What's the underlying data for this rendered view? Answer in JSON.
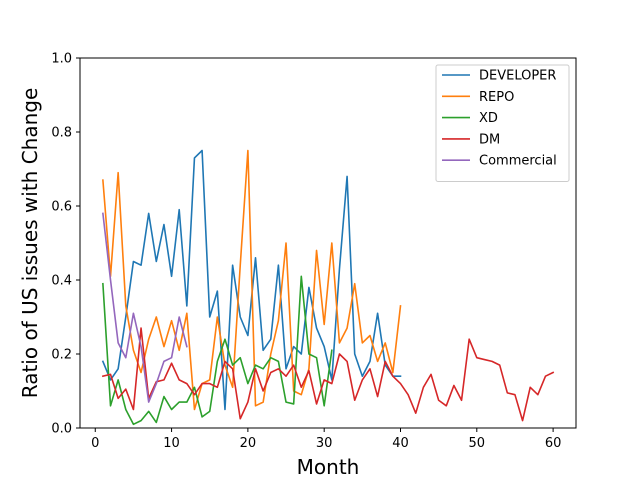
{
  "chart_data": {
    "type": "line",
    "title": "",
    "xlabel": "Month",
    "ylabel": "Ratio of US issues with Change",
    "xlim": [
      -2.0,
      63.0
    ],
    "ylim": [
      0.0,
      1.0
    ],
    "xticks": [
      0,
      10,
      20,
      30,
      40,
      50,
      60
    ],
    "yticks": [
      0.0,
      0.2,
      0.4,
      0.6,
      0.8,
      1.0
    ],
    "grid": false,
    "legend_position": "top-right",
    "series": [
      {
        "name": "DEVELOPER",
        "color": "#1f77b4",
        "x": [
          1,
          2,
          3,
          4,
          5,
          6,
          7,
          8,
          9,
          10,
          11,
          12,
          13,
          14,
          15,
          16,
          17,
          18,
          19,
          20,
          21,
          22,
          23,
          24,
          25,
          26,
          27,
          28,
          29,
          30,
          31,
          32,
          33,
          34,
          35,
          36,
          37,
          38,
          39,
          40
        ],
        "y": [
          0.18,
          0.13,
          0.16,
          0.3,
          0.45,
          0.44,
          0.58,
          0.45,
          0.55,
          0.41,
          0.59,
          0.33,
          0.73,
          0.75,
          0.3,
          0.37,
          0.05,
          0.44,
          0.3,
          0.25,
          0.46,
          0.21,
          0.24,
          0.44,
          0.16,
          0.22,
          0.2,
          0.38,
          0.27,
          0.22,
          0.13,
          0.43,
          0.68,
          0.2,
          0.14,
          0.18,
          0.31,
          0.17,
          0.14,
          0.14
        ]
      },
      {
        "name": "REPO",
        "color": "#ff7f0e",
        "x": [
          1,
          2,
          3,
          4,
          5,
          6,
          7,
          8,
          9,
          10,
          11,
          12,
          13,
          14,
          15,
          16,
          17,
          18,
          19,
          20,
          21,
          22,
          23,
          24,
          25,
          26,
          27,
          28,
          29,
          30,
          31,
          32,
          33,
          34,
          35,
          36,
          37,
          38,
          39,
          40
        ],
        "y": [
          0.67,
          0.41,
          0.69,
          0.33,
          0.21,
          0.15,
          0.24,
          0.3,
          0.22,
          0.29,
          0.21,
          0.31,
          0.05,
          0.12,
          0.13,
          0.3,
          0.17,
          0.11,
          0.44,
          0.75,
          0.06,
          0.07,
          0.2,
          0.29,
          0.5,
          0.1,
          0.09,
          0.16,
          0.48,
          0.28,
          0.5,
          0.23,
          0.27,
          0.39,
          0.23,
          0.25,
          0.18,
          0.23,
          0.15,
          0.33
        ]
      },
      {
        "name": "XD",
        "color": "#2ca02c",
        "x": [
          1,
          2,
          3,
          4,
          5,
          6,
          7,
          8,
          9,
          10,
          11,
          12,
          13,
          14,
          15,
          16,
          17,
          18,
          19,
          20,
          21,
          22,
          23,
          24,
          25,
          26,
          27,
          28,
          29,
          30,
          31
        ],
        "y": [
          0.39,
          0.06,
          0.13,
          0.05,
          0.01,
          0.02,
          0.045,
          0.015,
          0.085,
          0.05,
          0.07,
          0.07,
          0.11,
          0.03,
          0.045,
          0.18,
          0.24,
          0.17,
          0.19,
          0.12,
          0.17,
          0.16,
          0.19,
          0.18,
          0.07,
          0.065,
          0.41,
          0.2,
          0.19,
          0.06,
          0.21
        ]
      },
      {
        "name": "DM",
        "color": "#d62728",
        "x": [
          1,
          2,
          3,
          4,
          5,
          6,
          7,
          8,
          9,
          10,
          11,
          12,
          13,
          14,
          15,
          16,
          17,
          18,
          19,
          20,
          21,
          22,
          23,
          24,
          25,
          26,
          27,
          28,
          29,
          30,
          31,
          32,
          33,
          34,
          35,
          36,
          37,
          38,
          39,
          40,
          41,
          42,
          43,
          44,
          45,
          46,
          47,
          48,
          49,
          50,
          51,
          52,
          53,
          54,
          55,
          56,
          57,
          58,
          59,
          60
        ],
        "y": [
          0.14,
          0.145,
          0.08,
          0.105,
          0.05,
          0.27,
          0.08,
          0.125,
          0.13,
          0.175,
          0.13,
          0.12,
          0.09,
          0.12,
          0.12,
          0.11,
          0.18,
          0.16,
          0.025,
          0.07,
          0.16,
          0.1,
          0.15,
          0.16,
          0.14,
          0.17,
          0.11,
          0.155,
          0.065,
          0.13,
          0.12,
          0.2,
          0.18,
          0.075,
          0.13,
          0.16,
          0.085,
          0.18,
          0.14,
          0.12,
          0.09,
          0.04,
          0.11,
          0.145,
          0.075,
          0.06,
          0.115,
          0.075,
          0.24,
          0.19,
          0.185,
          0.18,
          0.17,
          0.095,
          0.09,
          0.02,
          0.11,
          0.09,
          0.14,
          0.15
        ]
      },
      {
        "name": "Commercial",
        "color": "#9467bd",
        "x": [
          1,
          2,
          3,
          4,
          5,
          6,
          7,
          8,
          9,
          10,
          11,
          12
        ],
        "y": [
          0.58,
          0.4,
          0.23,
          0.19,
          0.31,
          0.22,
          0.07,
          0.12,
          0.18,
          0.19,
          0.3,
          0.22
        ]
      }
    ]
  }
}
